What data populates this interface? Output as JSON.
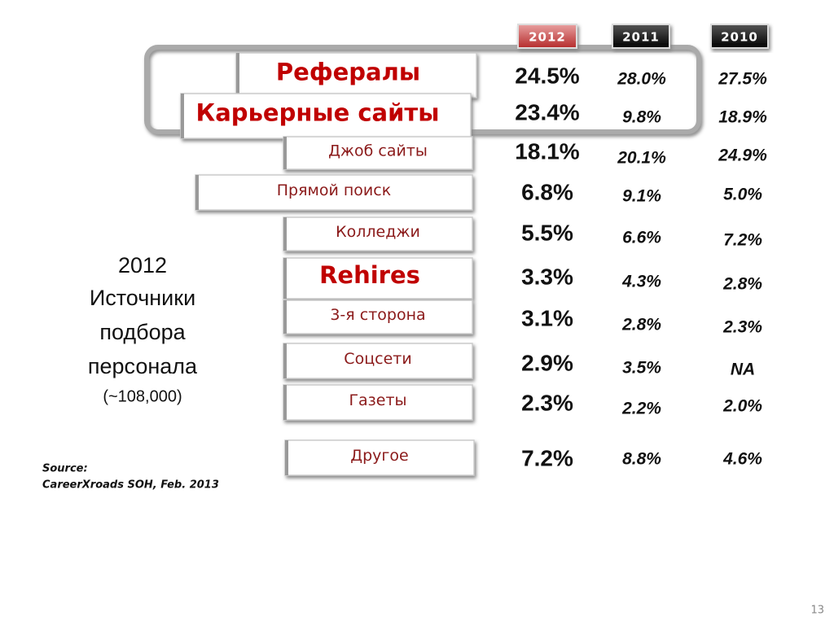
{
  "years": [
    "2012",
    "2011",
    "2010"
  ],
  "rows": [
    {
      "label": "Рефералы",
      "values": [
        "24.5%",
        "28.0%",
        "27.5%"
      ]
    },
    {
      "label": "Карьерные сайты",
      "values": [
        "23.4%",
        "9.8%",
        "18.9%"
      ]
    },
    {
      "label": "Джоб сайты",
      "values": [
        "18.1%",
        "20.1%",
        "24.9%"
      ]
    },
    {
      "label": "Прямой поиск",
      "values": [
        "6.8%",
        "9.1%",
        "5.0%"
      ]
    },
    {
      "label": "Колледжи",
      "values": [
        "5.5%",
        "6.6%",
        "7.2%"
      ]
    },
    {
      "label": "Rehires",
      "values": [
        "3.3%",
        "4.3%",
        "2.8%"
      ]
    },
    {
      "label": "3-я сторона",
      "values": [
        "3.1%",
        "2.8%",
        "2.3%"
      ]
    },
    {
      "label": "Соцсети",
      "values": [
        "2.9%",
        "3.5%",
        "NA"
      ]
    },
    {
      "label": "Газеты",
      "values": [
        "2.3%",
        "2.2%",
        "2.0%"
      ]
    },
    {
      "label": "Другое",
      "values": [
        "7.2%",
        "8.8%",
        "4.6%"
      ]
    }
  ],
  "title_lines": [
    "2012",
    "Источники",
    "подбора",
    "персонала",
    "(~108,000)"
  ],
  "source": [
    "Source:",
    "CareerXroads SOH, Feb. 2013"
  ],
  "page_number": "13"
}
